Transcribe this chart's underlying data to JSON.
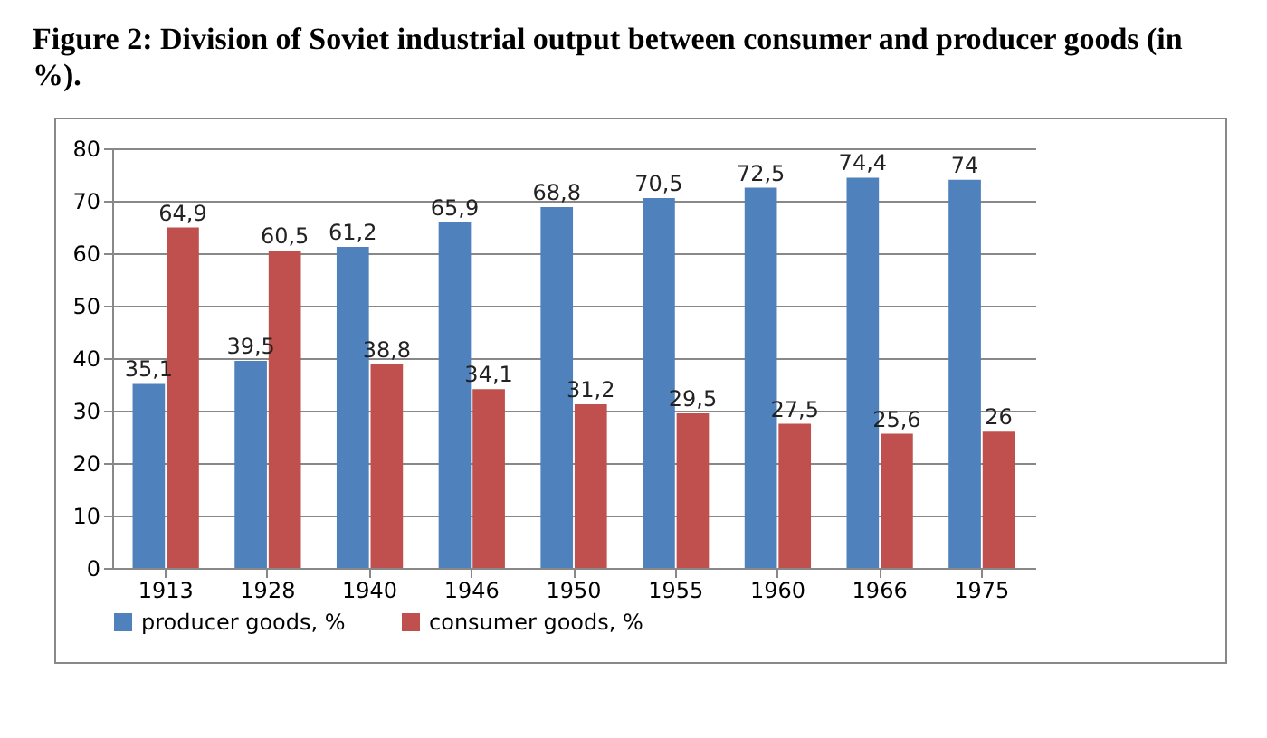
{
  "chart_data": {
    "type": "bar",
    "title": "Figure 2: Division of Soviet industrial output between consumer and producer goods (in %).",
    "categories": [
      "1913",
      "1928",
      "1940",
      "1946",
      "1950",
      "1955",
      "1960",
      "1966",
      "1975"
    ],
    "series": [
      {
        "name": "producer goods, %",
        "color": "#4f81bd",
        "values": [
          35.1,
          39.5,
          61.2,
          65.9,
          68.8,
          70.5,
          72.5,
          74.4,
          74
        ],
        "value_labels": [
          "35,1",
          "39,5",
          "61,2",
          "65,9",
          "68,8",
          "70,5",
          "72,5",
          "74,4",
          "74"
        ]
      },
      {
        "name": "consumer goods, %",
        "color": "#c0504d",
        "values": [
          64.9,
          60.5,
          38.8,
          34.1,
          31.2,
          29.5,
          27.5,
          25.6,
          26
        ],
        "value_labels": [
          "64,9",
          "60,5",
          "38,8",
          "34,1",
          "31,2",
          "29,5",
          "27,5",
          "25,6",
          "26"
        ]
      }
    ],
    "ylim": [
      0,
      80
    ],
    "yticks": [
      0,
      10,
      20,
      30,
      40,
      50,
      60,
      70,
      80
    ],
    "grid": "y",
    "legend": "bottom"
  }
}
